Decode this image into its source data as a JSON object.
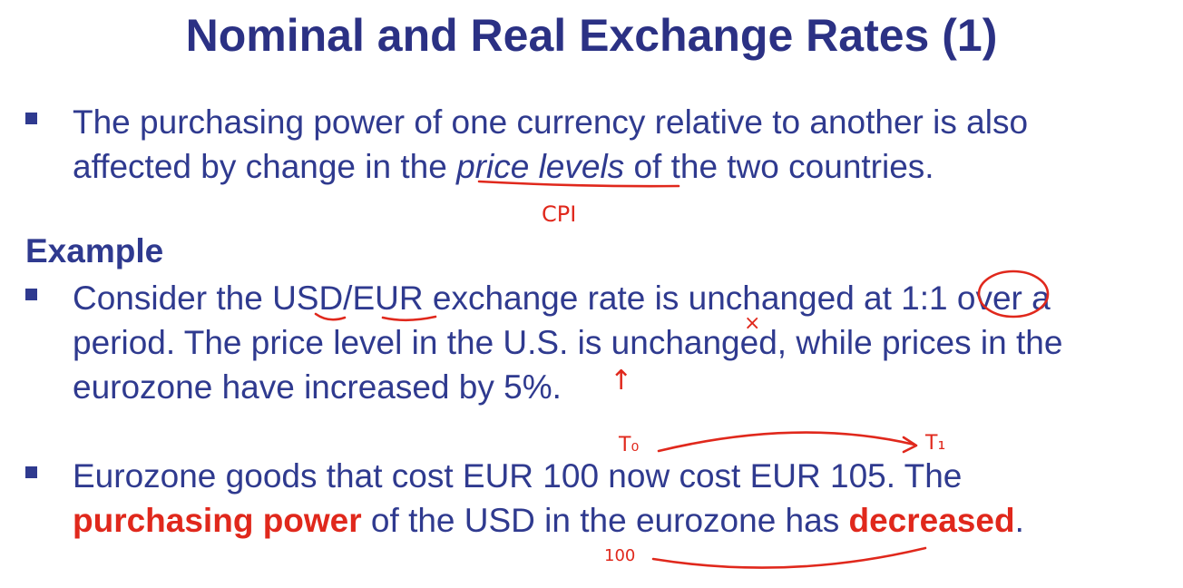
{
  "slide": {
    "title": "Nominal and Real Exchange Rates (1)",
    "bullet1": {
      "line1": "The purchasing power of one currency relative to another is also",
      "line2_pre": "affected by change in the ",
      "line2_em": "price levels",
      "line2_post": " of the two countries."
    },
    "section_heading": "Example",
    "bullet2": {
      "line1": "Consider the USD/EUR exchange rate is unchanged at 1:1 over a",
      "line2": "period. The price level in the U.S. is unchanged, while prices in the",
      "line3": "eurozone have increased by 5%."
    },
    "bullet3": {
      "line1": "Eurozone goods that cost EUR 100 now cost EUR 105. The",
      "line2_red1": "purchasing power",
      "line2_mid": " of the USD in the eurozone has ",
      "line2_red2": "decreased",
      "line2_end": "."
    }
  },
  "annotations": {
    "cpi": "CPI",
    "t0": "T₀",
    "t1": "T₁",
    "hundred": "100",
    "x_mark": "×",
    "up_arrow": "↑"
  },
  "colors": {
    "title": "#2b3184",
    "body": "#2f3a8f",
    "accent_red": "#e0281c"
  }
}
